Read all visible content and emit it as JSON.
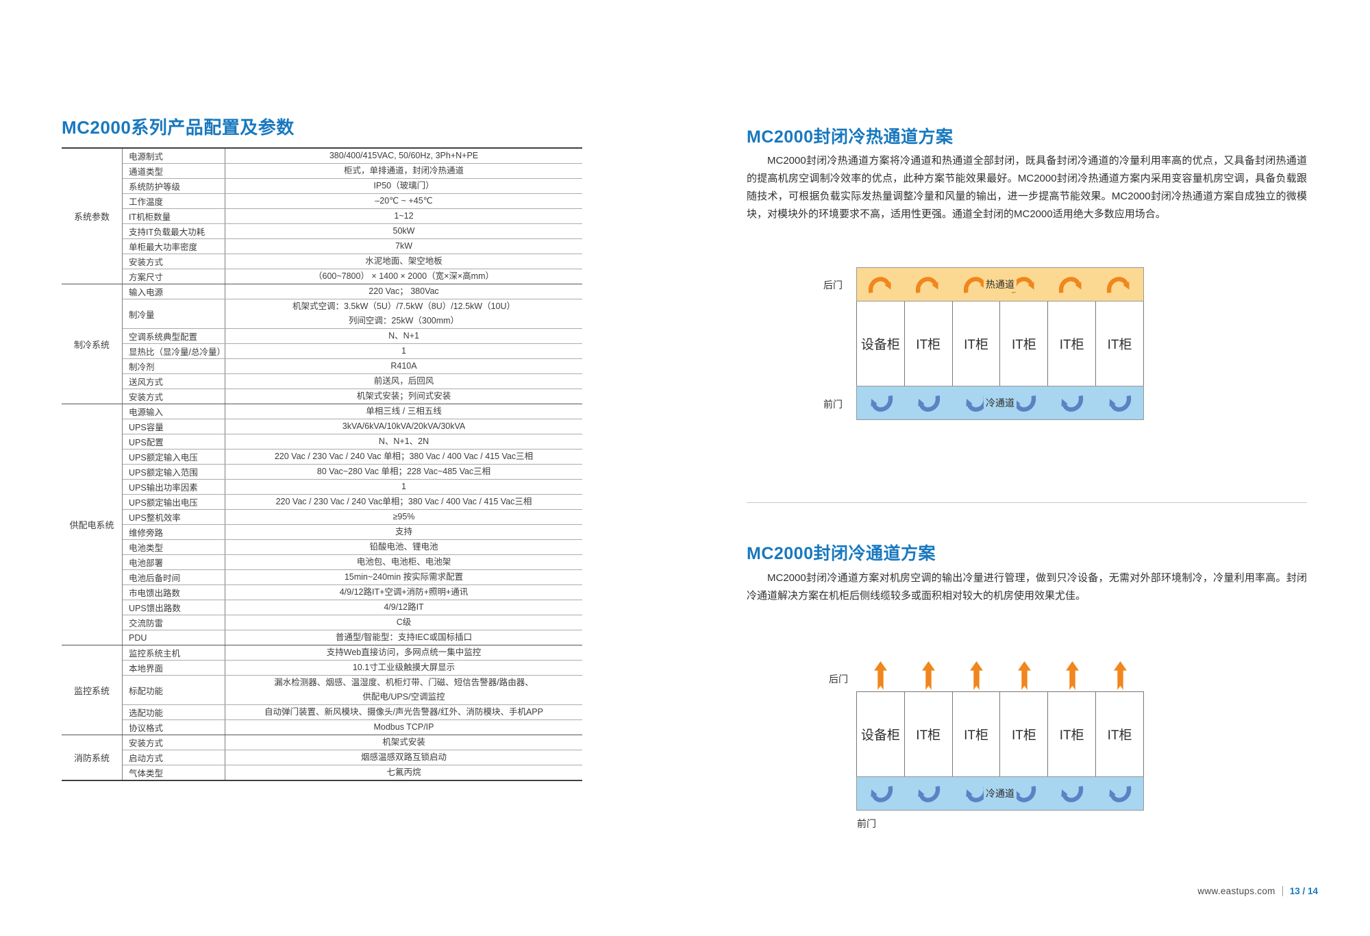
{
  "colors": {
    "accent": "#1878be",
    "text_dark": "#3c3c3c",
    "hot_band": "#fbd992",
    "hot_arrow": "#f0861c",
    "cold_band": "#a8d5f0",
    "cold_arrow": "#5b82c4"
  },
  "left": {
    "title": "MC2000系列产品配置及参数",
    "table": {
      "sections": [
        {
          "category": "系统参数",
          "rows": [
            {
              "label": "电源制式",
              "value": "380/400/415VAC, 50/60Hz, 3Ph+N+PE"
            },
            {
              "label": "通道类型",
              "value": "柜式，单排通道，封闭冷热通道"
            },
            {
              "label": "系统防护等级",
              "value": "IP50（玻璃门）"
            },
            {
              "label": "工作温度",
              "value": "–20℃ ~ +45℃"
            },
            {
              "label": "IT机柜数量",
              "value": "1~12"
            },
            {
              "label": "支持IT负载最大功耗",
              "value": "50kW"
            },
            {
              "label": "单柜最大功率密度",
              "value": "7kW"
            },
            {
              "label": "安装方式",
              "value": "水泥地面、架空地板"
            },
            {
              "label": "方案尺寸",
              "value": "（600~7800） × 1400 × 2000（宽×深×高mm）"
            }
          ]
        },
        {
          "category": "制冷系统",
          "rows": [
            {
              "label": "输入电源",
              "value": "220 Vac； 380Vac"
            },
            {
              "label": "制冷量",
              "lines": [
                "机架式空调：3.5kW（5U）/7.5kW（8U）/12.5kW（10U）",
                "列间空调：25kW（300mm）"
              ]
            },
            {
              "label": "空调系统典型配置",
              "value": "N、N+1"
            },
            {
              "label": "显热比（显冷量/总冷量）",
              "value": "1"
            },
            {
              "label": "制冷剂",
              "value": "R410A"
            },
            {
              "label": "送风方式",
              "value": "前送风，后回风"
            },
            {
              "label": "安装方式",
              "value": "机架式安装；列间式安装"
            }
          ]
        },
        {
          "category": "供配电系统",
          "rows": [
            {
              "label": "电源输入",
              "value": "单相三线 / 三相五线"
            },
            {
              "label": "UPS容量",
              "value": "3kVA/6kVA/10kVA/20kVA/30kVA"
            },
            {
              "label": "UPS配置",
              "value": "N、N+1、2N"
            },
            {
              "label": "UPS额定输入电压",
              "value": "220 Vac / 230 Vac / 240 Vac 单相；380 Vac / 400 Vac / 415 Vac三相"
            },
            {
              "label": "UPS额定输入范围",
              "value": "80 Vac~280 Vac 单相；228 Vac~485 Vac三相"
            },
            {
              "label": "UPS输出功率因素",
              "value": "1"
            },
            {
              "label": "UPS额定输出电压",
              "value": "220 Vac / 230 Vac / 240 Vac单相；380 Vac / 400 Vac / 415 Vac三相"
            },
            {
              "label": "UPS整机效率",
              "value": "≥95%"
            },
            {
              "label": "维修旁路",
              "value": "支持"
            },
            {
              "label": "电池类型",
              "value": "铅酸电池、锂电池"
            },
            {
              "label": "电池部署",
              "value": "电池包、电池柜、电池架"
            },
            {
              "label": "电池后备时间",
              "value": "15min~240min 按实际需求配置"
            },
            {
              "label": "市电馈出路数",
              "value": "4/9/12路IT+空调+消防+照明+通讯"
            },
            {
              "label": "UPS馈出路数",
              "value": "4/9/12路IT"
            },
            {
              "label": "交流防雷",
              "value": "C级"
            },
            {
              "label": "PDU",
              "value": "普通型/智能型：支持IEC或国标插口"
            }
          ]
        },
        {
          "category": "监控系统",
          "rows": [
            {
              "label": "监控系统主机",
              "value": "支持Web直接访问，多网点统一集中监控"
            },
            {
              "label": "本地界面",
              "value": "10.1寸工业级触摸大屏显示"
            },
            {
              "label": "标配功能",
              "lines": [
                "漏水检测器、烟感、温湿度、机柜灯带、门磁、短信告警器/路由器、",
                "供配电/UPS/空调监控"
              ]
            },
            {
              "label": "选配功能",
              "value": "自动弹门装置、新风模块、摄像头/声光告警器/红外、消防模块、手机APP"
            },
            {
              "label": "协议格式",
              "value": "Modbus TCP/IP"
            }
          ]
        },
        {
          "category": "消防系统",
          "rows": [
            {
              "label": "安装方式",
              "value": "机架式安装"
            },
            {
              "label": "启动方式",
              "value": "烟感温感双路互锁启动"
            },
            {
              "label": "气体类型",
              "value": "七氟丙烷"
            }
          ]
        }
      ]
    }
  },
  "right": {
    "sections": [
      {
        "title": "MC2000封闭冷热通道方案",
        "paragraph": "MC2000封闭冷热通道方案将冷通道和热通道全部封闭，既具备封闭冷通道的冷量利用率高的优点，又具备封闭热通道的提高机房空调制冷效率的优点，此种方案节能效果最好。MC2000封闭冷热通道方案内采用变容量机房空调，具备负载跟随技术，可根据负载实际发热量调整冷量和风量的输出，进一步提高节能效果。MC2000封闭冷热通道方案自成独立的微模块，对模块外的环境要求不高，适用性更强。通道全封闭的MC2000适用绝大多数应用场合。",
        "diagram": {
          "back_door": "后门",
          "front_door": "前门",
          "hot_aisle_label": "热通道",
          "cold_aisle_label": "冷通道",
          "cabinets": [
            "设备柜",
            "IT柜",
            "IT柜",
            "IT柜",
            "IT柜",
            "IT柜"
          ],
          "arrow_count": 6
        }
      },
      {
        "title": "MC2000封闭冷通道方案",
        "paragraph": "MC2000封闭冷通道方案对机房空调的输出冷量进行管理，做到只冷设备，无需对外部环境制冷，冷量利用率高。封闭冷通道解决方案在机柜后侧线缆较多或面积相对较大的机房使用效果尤佳。",
        "diagram": {
          "back_door": "后门",
          "front_door": "前门",
          "cold_aisle_label": "冷通道",
          "cabinets": [
            "设备柜",
            "IT柜",
            "IT柜",
            "IT柜",
            "IT柜",
            "IT柜"
          ],
          "arrow_count": 6
        }
      }
    ]
  },
  "footer": {
    "url": "www.eastups.com",
    "page": "13 / 14"
  }
}
